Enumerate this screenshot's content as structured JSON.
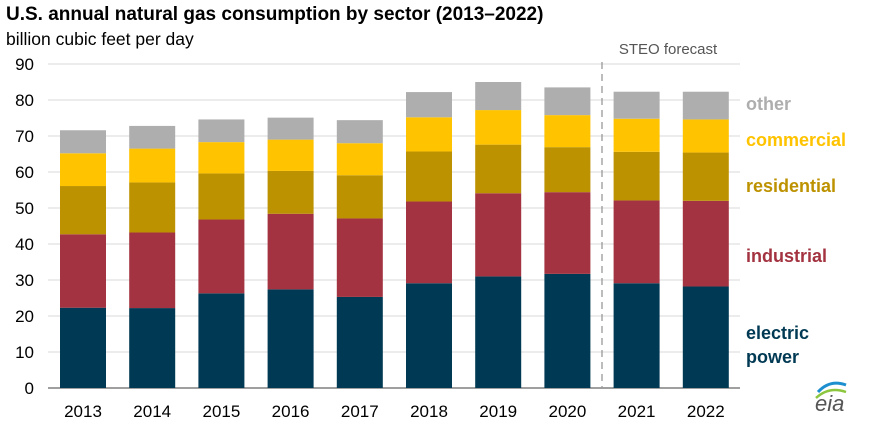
{
  "chart_data": {
    "type": "bar",
    "stacked": true,
    "title": "U.S. annual natural gas consumption by sector (2013–2022)",
    "subtitle": "billion cubic feet per day",
    "categories": [
      "2013",
      "2014",
      "2015",
      "2016",
      "2017",
      "2018",
      "2019",
      "2020",
      "2021",
      "2022"
    ],
    "ylim": [
      0,
      90
    ],
    "yticks": [
      0,
      10,
      20,
      30,
      40,
      50,
      60,
      70,
      80,
      90
    ],
    "series": [
      {
        "name": "electric power",
        "color": "#003953",
        "values": [
          22.3,
          22.2,
          26.3,
          27.4,
          25.3,
          29.1,
          31.0,
          31.7,
          29.1,
          28.2
        ]
      },
      {
        "name": "industrial",
        "color": "#a33340",
        "values": [
          20.4,
          21.0,
          20.5,
          21.0,
          21.8,
          22.7,
          23.1,
          22.7,
          23.0,
          23.8
        ]
      },
      {
        "name": "residential",
        "color": "#bd9200",
        "values": [
          13.4,
          13.9,
          12.8,
          11.9,
          12.0,
          13.9,
          13.5,
          12.5,
          13.5,
          13.4
        ]
      },
      {
        "name": "commercial",
        "color": "#ffc300",
        "values": [
          9.1,
          9.4,
          8.7,
          8.7,
          8.9,
          9.5,
          9.6,
          8.9,
          9.2,
          9.2
        ]
      },
      {
        "name": "other",
        "color": "#aeaeae",
        "values": [
          6.4,
          6.3,
          6.3,
          6.1,
          6.4,
          7.0,
          7.8,
          7.7,
          7.5,
          7.7
        ]
      }
    ],
    "legend": [
      {
        "label": "other",
        "color": "#aeaeae"
      },
      {
        "label": "commercial",
        "color": "#ffc300"
      },
      {
        "label": "residential",
        "color": "#bd9200"
      },
      {
        "label": "industrial",
        "color": "#a33340"
      },
      {
        "label": "electric",
        "color": "#003953"
      },
      {
        "label": "power",
        "color": "#003953"
      }
    ],
    "forecast_label": "STEO forecast",
    "forecast_start_category": "2021",
    "source_logo": "eia"
  }
}
